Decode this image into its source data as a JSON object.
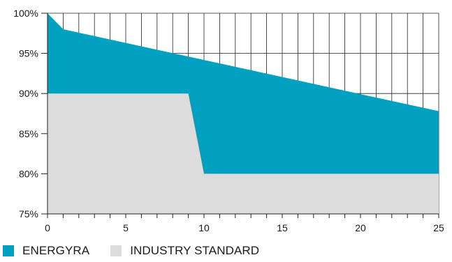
{
  "chart_data": {
    "type": "area",
    "x_ticks": [
      0,
      5,
      10,
      15,
      20,
      25
    ],
    "y_ticks": [
      75,
      80,
      85,
      90,
      95,
      100
    ],
    "y_tick_labels": [
      "75%",
      "80%",
      "85%",
      "90%",
      "95%",
      "100%"
    ],
    "xlim": [
      0,
      25
    ],
    "ylim": [
      75,
      100
    ],
    "grid": "vertical lines each year above the areas",
    "legend_placement": "bottom-left",
    "series": [
      {
        "name": "ENERGYRA",
        "color": "#00a0c0",
        "x": [
          0,
          1,
          25
        ],
        "y": [
          100,
          98,
          87.8
        ]
      },
      {
        "name": "INDUSTRY STANDARD",
        "color": "#dcdcdc",
        "x": [
          0,
          9,
          10,
          25
        ],
        "y": [
          90,
          90,
          80,
          80
        ]
      }
    ]
  },
  "legend": {
    "items": [
      {
        "label": "ENERGYRA",
        "color": "#00a0c0"
      },
      {
        "label": "INDUSTRY STANDARD",
        "color": "#dcdcdc"
      }
    ]
  }
}
